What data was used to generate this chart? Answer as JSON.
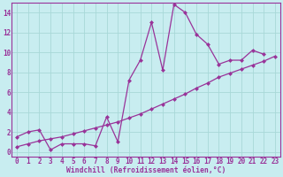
{
  "xlabel": "Windchill (Refroidissement éolien,°C)",
  "background_color": "#c8edf0",
  "grid_color": "#a8d8d8",
  "line_color": "#993399",
  "label_color": "#993399",
  "xlim_min": -0.5,
  "xlim_max": 23.5,
  "ylim_min": -0.5,
  "ylim_max": 15.0,
  "xticks": [
    0,
    1,
    2,
    3,
    4,
    5,
    6,
    7,
    8,
    9,
    10,
    11,
    12,
    13,
    14,
    15,
    16,
    17,
    18,
    19,
    20,
    21,
    22,
    23
  ],
  "yticks": [
    0,
    2,
    4,
    6,
    8,
    10,
    12,
    14
  ],
  "line1_x": [
    0,
    1,
    2,
    3,
    4,
    5,
    6,
    7,
    8,
    9,
    10,
    11,
    12,
    13,
    14,
    15,
    16,
    17,
    18,
    19,
    20,
    21,
    22
  ],
  "line1_y": [
    1.5,
    2.0,
    2.2,
    0.2,
    0.8,
    0.8,
    0.8,
    0.6,
    3.5,
    1.0,
    7.2,
    9.2,
    13.0,
    8.2,
    14.8,
    14.0,
    11.8,
    10.8,
    8.8,
    9.2,
    9.2,
    10.2,
    9.8
  ],
  "line2_x": [
    0,
    1,
    2,
    3,
    4,
    5,
    6,
    7,
    8,
    9,
    10,
    11,
    12,
    13,
    14,
    15,
    16,
    17,
    18,
    19,
    20,
    21,
    22,
    23
  ],
  "line2_y": [
    0.5,
    0.8,
    1.1,
    1.3,
    1.5,
    1.8,
    2.1,
    2.4,
    2.7,
    3.0,
    3.4,
    3.8,
    4.3,
    4.8,
    5.3,
    5.8,
    6.4,
    6.9,
    7.5,
    7.9,
    8.3,
    8.7,
    9.1,
    9.6
  ]
}
